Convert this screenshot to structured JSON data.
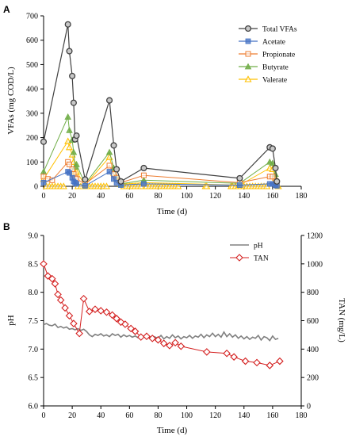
{
  "chart_data": [
    {
      "panel": "A",
      "type": "line",
      "xlabel": "Time (d)",
      "ylabel": "VFAs (mg COD/L)",
      "xlim": [
        0,
        180
      ],
      "ylim": [
        0,
        700
      ],
      "xticks": [
        0,
        20,
        40,
        60,
        80,
        100,
        120,
        140,
        160,
        180
      ],
      "yticks": [
        0,
        100,
        200,
        300,
        400,
        500,
        600,
        700
      ],
      "grid": false,
      "legend_position": "top-right",
      "series": [
        {
          "name": "Total VFAs",
          "color": "#404040",
          "marker": "circle",
          "x": [
            0,
            17,
            18,
            20,
            21,
            22,
            23,
            29,
            46,
            49,
            51,
            54,
            70,
            137,
            158,
            160,
            162,
            163
          ],
          "y": [
            183,
            665,
            555,
            453,
            343,
            193,
            208,
            28,
            353,
            168,
            70,
            20,
            75,
            33,
            160,
            155,
            75,
            20
          ]
        },
        {
          "name": "Acetate",
          "color": "#4472C4",
          "marker": "square",
          "x": [
            0,
            17,
            18,
            20,
            21,
            22,
            23,
            29,
            46,
            49,
            51,
            54,
            70,
            137,
            158,
            160,
            162,
            163
          ],
          "y": [
            15,
            60,
            55,
            35,
            20,
            15,
            10,
            2,
            60,
            30,
            15,
            5,
            10,
            5,
            10,
            10,
            5,
            2
          ]
        },
        {
          "name": "Propionate",
          "color": "#ED7D31",
          "marker": "square-open",
          "x": [
            0,
            3,
            6,
            17,
            18,
            20,
            21,
            22,
            23,
            29,
            46,
            49,
            51,
            54,
            70,
            137,
            158,
            160,
            162,
            163
          ],
          "y": [
            40,
            30,
            25,
            100,
            90,
            70,
            50,
            35,
            30,
            10,
            85,
            50,
            35,
            15,
            45,
            15,
            40,
            40,
            20,
            10
          ]
        },
        {
          "name": "Butyrate",
          "color": "#70AD47",
          "marker": "triangle",
          "x": [
            0,
            17,
            18,
            20,
            21,
            22,
            23,
            29,
            46,
            49,
            51,
            54,
            70,
            137,
            158,
            160,
            162,
            163
          ],
          "y": [
            60,
            285,
            230,
            190,
            140,
            80,
            90,
            10,
            140,
            75,
            35,
            10,
            25,
            12,
            100,
            95,
            50,
            10
          ]
        },
        {
          "name": "Valerate",
          "color": "#FFC000",
          "marker": "triangle-open",
          "x": [
            0,
            17,
            18,
            20,
            21,
            22,
            23,
            29,
            46,
            49,
            51,
            54,
            70,
            137,
            158,
            160,
            162,
            163
          ],
          "y": [
            30,
            185,
            160,
            130,
            100,
            60,
            60,
            5,
            120,
            55,
            30,
            8,
            15,
            5,
            75,
            70,
            35,
            5
          ]
        }
      ],
      "zero_baseline_markers": {
        "series": "Valerate",
        "x": [
          2,
          4,
          6,
          8,
          10,
          12,
          14,
          24,
          26,
          30,
          32,
          34,
          36,
          38,
          40,
          42,
          44,
          56,
          58,
          60,
          62,
          64,
          66,
          68,
          72,
          74,
          76,
          78,
          80,
          82,
          84,
          86,
          88,
          90,
          92,
          94,
          113,
          114,
          131,
          132,
          134,
          136,
          138,
          140,
          142,
          144,
          146,
          148,
          150,
          152,
          154,
          156,
          164
        ],
        "y": 0
      }
    },
    {
      "panel": "B",
      "type": "line",
      "xlabel": "Time (d)",
      "ylabel": "pH",
      "y2label": "TAN (mg/L)",
      "xlim": [
        0,
        180
      ],
      "ylim": [
        6.0,
        9.0
      ],
      "y2lim": [
        0,
        1200
      ],
      "xticks": [
        0,
        20,
        40,
        60,
        80,
        100,
        120,
        140,
        160,
        180
      ],
      "yticks": [
        "6.0",
        "6.5",
        "7.0",
        "7.5",
        "8.0",
        "8.5",
        "9.0"
      ],
      "y2ticks": [
        0,
        200,
        400,
        600,
        800,
        1000,
        1200
      ],
      "grid": false,
      "legend_position": "top-right",
      "series": [
        {
          "name": "pH",
          "axis": "left",
          "color": "#808080",
          "marker": "none",
          "x": [
            0,
            2,
            4,
            6,
            8,
            10,
            12,
            14,
            16,
            18,
            20,
            22,
            24,
            26,
            28,
            30,
            32,
            34,
            36,
            38,
            40,
            42,
            44,
            46,
            48,
            50,
            52,
            54,
            56,
            58,
            60,
            62,
            64,
            66,
            68,
            70,
            72,
            74,
            76,
            78,
            80,
            82,
            84,
            86,
            88,
            90,
            92,
            94,
            96,
            98,
            100,
            102,
            104,
            106,
            108,
            110,
            112,
            114,
            116,
            118,
            120,
            122,
            124,
            126,
            128,
            130,
            132,
            134,
            136,
            138,
            140,
            142,
            144,
            146,
            148,
            150,
            152,
            154,
            156,
            158,
            160,
            162,
            164
          ],
          "y": [
            7.43,
            7.45,
            7.42,
            7.41,
            7.44,
            7.38,
            7.4,
            7.37,
            7.39,
            7.35,
            7.36,
            7.34,
            7.36,
            7.33,
            7.35,
            7.31,
            7.25,
            7.22,
            7.26,
            7.24,
            7.27,
            7.23,
            7.25,
            7.22,
            7.27,
            7.24,
            7.26,
            7.21,
            7.25,
            7.22,
            7.24,
            7.21,
            7.23,
            7.2,
            7.24,
            7.21,
            7.22,
            7.2,
            7.23,
            7.21,
            7.19,
            7.24,
            7.18,
            7.22,
            7.19,
            7.25,
            7.2,
            7.23,
            7.18,
            7.22,
            7.2,
            7.24,
            7.19,
            7.23,
            7.21,
            7.26,
            7.2,
            7.25,
            7.22,
            7.28,
            7.22,
            7.26,
            7.21,
            7.3,
            7.22,
            7.27,
            7.21,
            7.25,
            7.19,
            7.23,
            7.18,
            7.22,
            7.17,
            7.21,
            7.19,
            7.24,
            7.16,
            7.22,
            7.2,
            7.15,
            7.23,
            7.17,
            7.19
          ]
        },
        {
          "name": "TAN",
          "axis": "right",
          "color": "#D42020",
          "marker": "diamond-open",
          "x": [
            0,
            3,
            6,
            8,
            10,
            12,
            15,
            18,
            21,
            25,
            28,
            32,
            36,
            40,
            44,
            48,
            51,
            54,
            57,
            61,
            64,
            68,
            72,
            76,
            80,
            84,
            88,
            92,
            96,
            114,
            128,
            133,
            141,
            149,
            158,
            165
          ],
          "y": [
            1000,
            915,
            895,
            860,
            785,
            745,
            690,
            635,
            580,
            510,
            755,
            665,
            680,
            670,
            660,
            640,
            615,
            590,
            575,
            545,
            525,
            485,
            490,
            475,
            465,
            440,
            425,
            445,
            420,
            380,
            370,
            345,
            315,
            305,
            285,
            315
          ]
        }
      ]
    }
  ],
  "panel_labels": [
    "A",
    "B"
  ],
  "colors": {
    "axis": "#000000",
    "total_vfas": "#404040",
    "acetate": "#4472C4",
    "propionate": "#ED7D31",
    "butyrate": "#70AD47",
    "valerate": "#FFC000",
    "ph": "#808080",
    "tan": "#D42020"
  }
}
